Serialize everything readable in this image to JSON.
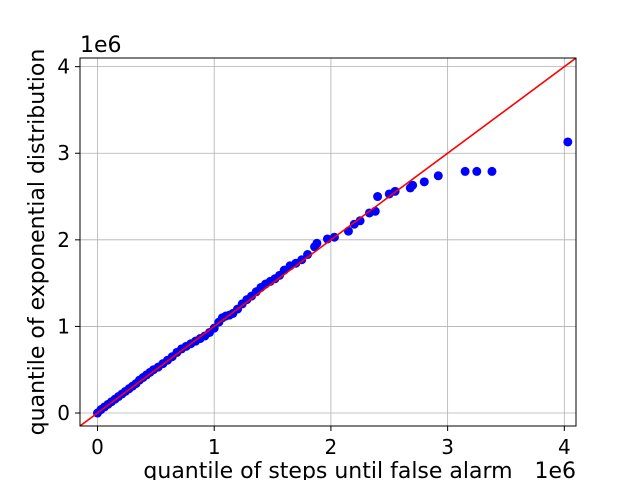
{
  "chart_data": {
    "type": "scatter",
    "title": "",
    "xlabel": "quantile of steps until false alarm",
    "ylabel": "quantile of exponential distribution",
    "x_offset_label": "1e6",
    "y_offset_label": "1e6",
    "xlim": [
      -0.15,
      4.1
    ],
    "ylim": [
      -0.15,
      4.1
    ],
    "xticks": [
      0,
      1,
      2,
      3,
      4
    ],
    "yticks": [
      0,
      1,
      2,
      3,
      4
    ],
    "xtick_labels": [
      "0",
      "1",
      "2",
      "3",
      "4"
    ],
    "ytick_labels": [
      "0",
      "1",
      "2",
      "3",
      "4"
    ],
    "grid": true,
    "series": [
      {
        "kind": "scatter",
        "color": "#0000ff",
        "points": [
          [
            0.0,
            0.0
          ],
          [
            0.03,
            0.04
          ],
          [
            0.06,
            0.07
          ],
          [
            0.09,
            0.1
          ],
          [
            0.12,
            0.13
          ],
          [
            0.15,
            0.16
          ],
          [
            0.18,
            0.19
          ],
          [
            0.21,
            0.22
          ],
          [
            0.24,
            0.25
          ],
          [
            0.27,
            0.28
          ],
          [
            0.3,
            0.31
          ],
          [
            0.33,
            0.34
          ],
          [
            0.36,
            0.38
          ],
          [
            0.39,
            0.41
          ],
          [
            0.42,
            0.44
          ],
          [
            0.45,
            0.47
          ],
          [
            0.48,
            0.5
          ],
          [
            0.52,
            0.53
          ],
          [
            0.56,
            0.57
          ],
          [
            0.6,
            0.61
          ],
          [
            0.64,
            0.65
          ],
          [
            0.68,
            0.7
          ],
          [
            0.72,
            0.74
          ],
          [
            0.76,
            0.77
          ],
          [
            0.8,
            0.8
          ],
          [
            0.84,
            0.83
          ],
          [
            0.88,
            0.86
          ],
          [
            0.92,
            0.89
          ],
          [
            0.96,
            0.93
          ],
          [
            1.0,
            0.98
          ],
          [
            1.04,
            1.05
          ],
          [
            1.07,
            1.1
          ],
          [
            1.1,
            1.12
          ],
          [
            1.13,
            1.13
          ],
          [
            1.16,
            1.15
          ],
          [
            1.2,
            1.2
          ],
          [
            1.24,
            1.26
          ],
          [
            1.28,
            1.31
          ],
          [
            1.32,
            1.35
          ],
          [
            1.36,
            1.4
          ],
          [
            1.4,
            1.45
          ],
          [
            1.44,
            1.49
          ],
          [
            1.48,
            1.52
          ],
          [
            1.52,
            1.55
          ],
          [
            1.56,
            1.59
          ],
          [
            1.6,
            1.65
          ],
          [
            1.65,
            1.7
          ],
          [
            1.7,
            1.73
          ],
          [
            1.75,
            1.77
          ],
          [
            1.8,
            1.83
          ],
          [
            1.86,
            1.92
          ],
          [
            1.88,
            1.96
          ],
          [
            1.97,
            2.01
          ],
          [
            2.03,
            2.03
          ],
          [
            2.15,
            2.1
          ],
          [
            2.2,
            2.18
          ],
          [
            2.25,
            2.22
          ],
          [
            2.33,
            2.31
          ],
          [
            2.38,
            2.33
          ],
          [
            2.4,
            2.5
          ],
          [
            2.5,
            2.53
          ],
          [
            2.55,
            2.56
          ],
          [
            2.68,
            2.6
          ],
          [
            2.7,
            2.63
          ],
          [
            2.8,
            2.67
          ],
          [
            2.92,
            2.74
          ],
          [
            3.15,
            2.79
          ],
          [
            3.25,
            2.79
          ],
          [
            3.38,
            2.79
          ],
          [
            4.03,
            3.13
          ]
        ]
      },
      {
        "kind": "line",
        "color": "#ff0000",
        "points": [
          [
            -0.15,
            -0.15
          ],
          [
            4.1,
            4.1
          ]
        ]
      }
    ]
  }
}
